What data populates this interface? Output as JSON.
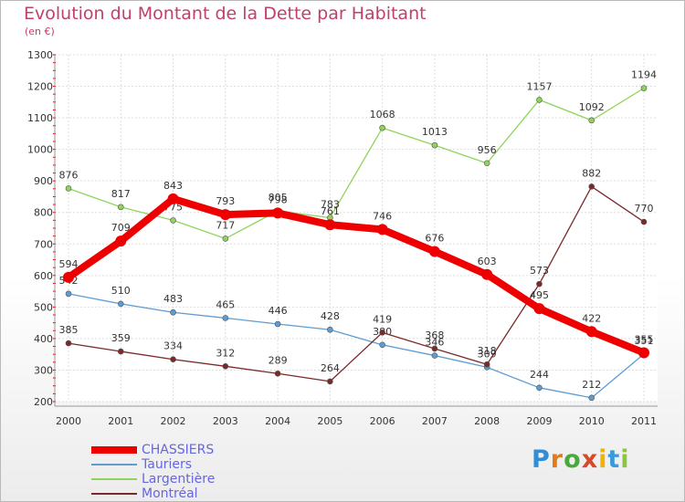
{
  "chart_data": {
    "type": "line",
    "title": "Evolution du Montant de la Dette par Habitant",
    "subtitle": "(en €)",
    "x": [
      "2000",
      "2001",
      "2002",
      "2003",
      "2004",
      "2005",
      "2006",
      "2007",
      "2008",
      "2009",
      "2010",
      "2011"
    ],
    "yticks": [
      200,
      300,
      400,
      500,
      600,
      700,
      800,
      900,
      1000,
      1100,
      1200,
      1300
    ],
    "ylim": [
      200,
      1300
    ],
    "grid": true,
    "legend_position": "bottom-left",
    "series": [
      {
        "name": "Tauriers",
        "color": "#5e9cd3",
        "values": [
          542,
          510,
          483,
          465,
          446,
          428,
          380,
          346,
          309,
          244,
          212,
          351
        ]
      },
      {
        "name": "Largentière",
        "color": "#8fd45a",
        "values": [
          876,
          817,
          775,
          717,
          805,
          783,
          1068,
          1013,
          956,
          1157,
          1092,
          1194
        ]
      },
      {
        "name": "Montréal",
        "color": "#7a2a2a",
        "values": [
          385,
          359,
          334,
          312,
          289,
          264,
          419,
          368,
          318,
          573,
          882,
          770
        ]
      },
      {
        "name": "CHASSIERS",
        "color": "#ee0000",
        "values": [
          594,
          709,
          843,
          793,
          798,
          761,
          746,
          676,
          603,
          495,
          422,
          355
        ]
      }
    ],
    "legend": [
      "CHASSIERS",
      "Tauriers",
      "Largentière",
      "Montréal"
    ]
  },
  "logo": [
    "P",
    "r",
    "o",
    "x",
    "i",
    "t",
    "i"
  ]
}
